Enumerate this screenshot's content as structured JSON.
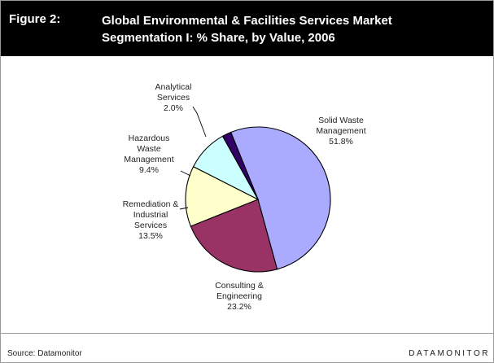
{
  "figure": {
    "label": "Figure 2:",
    "title_lines": [
      "Global Environmental & Facilities Services Market",
      "Segmentation I: % Share, by Value, 2006"
    ]
  },
  "footer": {
    "source": "Source: Datamonitor",
    "brand": "DATAMONITOR"
  },
  "chart_data": {
    "type": "pie",
    "title": "Global Environmental & Facilities Services Market Segmentation I: % Share, by Value, 2006",
    "unit": "%",
    "slices": [
      {
        "name": "Solid Waste Management",
        "value": 51.8,
        "label_lines": [
          "Solid Waste",
          "Management",
          "51.8%"
        ],
        "color": "#aaaaff"
      },
      {
        "name": "Consulting & Engineering",
        "value": 23.2,
        "label_lines": [
          "Consulting &",
          "Engineering",
          "23.2%"
        ],
        "color": "#993366"
      },
      {
        "name": "Remediation & Industrial Services",
        "value": 13.5,
        "label_lines": [
          "Remediation &",
          "Industrial",
          "Services",
          "13.5%"
        ],
        "color": "#ffffcc"
      },
      {
        "name": "Hazardous Waste Management",
        "value": 9.4,
        "label_lines": [
          "Hazardous",
          "Waste",
          "Management",
          "9.4%"
        ],
        "color": "#ccffff"
      },
      {
        "name": "Analytical Services",
        "value": 2.0,
        "label_lines": [
          "Analytical",
          "Services",
          "2.0%"
        ],
        "color": "#330066"
      }
    ]
  }
}
